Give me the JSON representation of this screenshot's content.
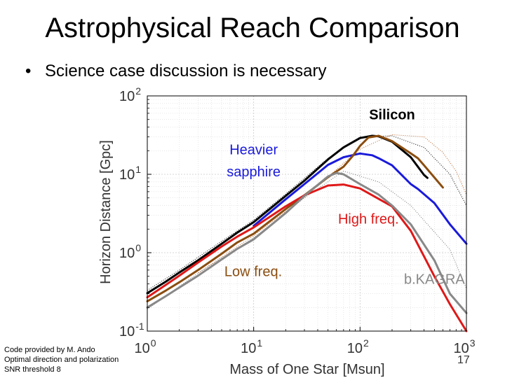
{
  "slide": {
    "title": "Astrophysical Reach Comparison",
    "bullet": "Science case discussion is necessary",
    "credit_lines": [
      "Code provided by M. Ando",
      "Optimal direction and polarization",
      "SNR threshold 8"
    ],
    "slide_number": "17"
  },
  "chart_data": {
    "type": "line",
    "xscale": "log",
    "yscale": "log",
    "xlim": [
      1,
      1000
    ],
    "ylim": [
      0.1,
      100
    ],
    "xlabel": "Mass of One Star [Msun]",
    "ylabel": "Horizon Distance [Gpc]",
    "x_ticks": [
      {
        "base": "10",
        "exp": "0"
      },
      {
        "base": "10",
        "exp": "1"
      },
      {
        "base": "10",
        "exp": "2"
      },
      {
        "base": "10",
        "exp": "3"
      }
    ],
    "y_ticks": [
      {
        "base": "10",
        "exp": "-1"
      },
      {
        "base": "10",
        "exp": "0"
      },
      {
        "base": "10",
        "exp": "1"
      },
      {
        "base": "10",
        "exp": "2"
      }
    ],
    "grid": true,
    "series": [
      {
        "name": "black",
        "color": "#000000",
        "x": [
          1,
          1.5,
          2,
          3,
          5,
          7,
          10,
          20,
          30,
          50,
          70,
          100,
          130,
          150,
          200,
          300,
          400,
          430
        ],
        "y": [
          0.305,
          0.43,
          0.56,
          0.8,
          1.3,
          1.8,
          2.45,
          5.3,
          8.3,
          15.5,
          22,
          29,
          31,
          30.5,
          26,
          16.5,
          9.8,
          9
        ]
      },
      {
        "name": "blue",
        "color": "#1a1adb",
        "x": [
          10,
          20,
          30,
          50,
          70,
          100,
          130,
          150,
          200,
          300,
          350,
          500,
          700,
          1000
        ],
        "y": [
          2.2,
          4.8,
          7.5,
          13.2,
          16.5,
          18.4,
          17.5,
          16,
          13,
          7.5,
          6.5,
          4.3,
          2.3,
          1.3
        ]
      },
      {
        "name": "brown",
        "color": "#8b4d0f",
        "x": [
          1,
          1.5,
          2,
          3,
          5,
          7,
          10,
          20,
          30,
          50,
          70,
          85,
          100,
          120,
          150,
          200,
          300,
          350,
          400,
          600
        ],
        "y": [
          0.24,
          0.33,
          0.42,
          0.6,
          0.97,
          1.35,
          1.75,
          3.6,
          5.4,
          9.2,
          12.5,
          17,
          23,
          29.5,
          31,
          26.5,
          18.5,
          16,
          13,
          6.8
        ]
      },
      {
        "name": "red",
        "color": "#e01818",
        "x": [
          1,
          1.5,
          2,
          3,
          5,
          7,
          10,
          20,
          30,
          50,
          70,
          100,
          200,
          300,
          500,
          700,
          1000
        ],
        "y": [
          0.27,
          0.39,
          0.51,
          0.75,
          1.2,
          1.6,
          2.1,
          3.9,
          5.4,
          7.2,
          7.4,
          6.6,
          3.9,
          1.9,
          0.5,
          0.22,
          0.095
        ]
      },
      {
        "name": "gray",
        "color": "#888888",
        "x": [
          1,
          1.5,
          2,
          3,
          5,
          7,
          10,
          20,
          30,
          50,
          60,
          70,
          100,
          150,
          200,
          300,
          500,
          700,
          1000
        ],
        "y": [
          0.2,
          0.28,
          0.36,
          0.51,
          0.82,
          1.12,
          1.48,
          3.2,
          5.3,
          9.4,
          10.4,
          10,
          7.5,
          5.5,
          4,
          2.3,
          0.8,
          0.3,
          0.17
        ]
      }
    ],
    "dotted_series": [
      {
        "name": "dotted-black",
        "color": "#000000",
        "x": [
          1,
          2,
          5,
          10,
          20,
          50,
          100,
          200,
          400,
          700,
          1000
        ],
        "y": [
          0.33,
          0.6,
          1.4,
          2.6,
          5.6,
          16,
          30,
          31,
          22,
          10,
          4
        ]
      },
      {
        "name": "dotted-brown",
        "color": "#b8642a",
        "x": [
          3,
          10,
          30,
          100,
          200,
          400,
          600,
          800,
          1000
        ],
        "y": [
          0.55,
          1.65,
          5.1,
          21,
          32,
          30,
          19,
          11,
          5.5
        ]
      },
      {
        "name": "dotted-gray",
        "color": "#777777",
        "x": [
          1,
          3,
          10,
          30,
          70,
          150,
          300,
          700,
          1000
        ],
        "y": [
          0.19,
          0.55,
          1.55,
          5,
          11,
          8,
          4,
          1.1,
          0.35
        ]
      }
    ],
    "annotations": [
      {
        "text": "Silicon",
        "x": 200,
        "y": 50,
        "color": "#000000",
        "bold": true
      },
      {
        "text": "Heavier",
        "x": 10,
        "y": 18,
        "color": "#1a1adb",
        "bold": false
      },
      {
        "text": "sapphire",
        "x": 10,
        "y": 9.4,
        "color": "#1a1adb",
        "bold": false
      },
      {
        "text": "High freq.",
        "x": 120,
        "y": 2.35,
        "color": "#e01818",
        "bold": false
      },
      {
        "text": "Low freq.",
        "x": 9.9,
        "y": 0.5,
        "color": "#8b4d0f",
        "bold": false
      },
      {
        "text": "b.KAGRA",
        "x": 500,
        "y": 0.4,
        "color": "#888888",
        "bold": false
      }
    ]
  }
}
